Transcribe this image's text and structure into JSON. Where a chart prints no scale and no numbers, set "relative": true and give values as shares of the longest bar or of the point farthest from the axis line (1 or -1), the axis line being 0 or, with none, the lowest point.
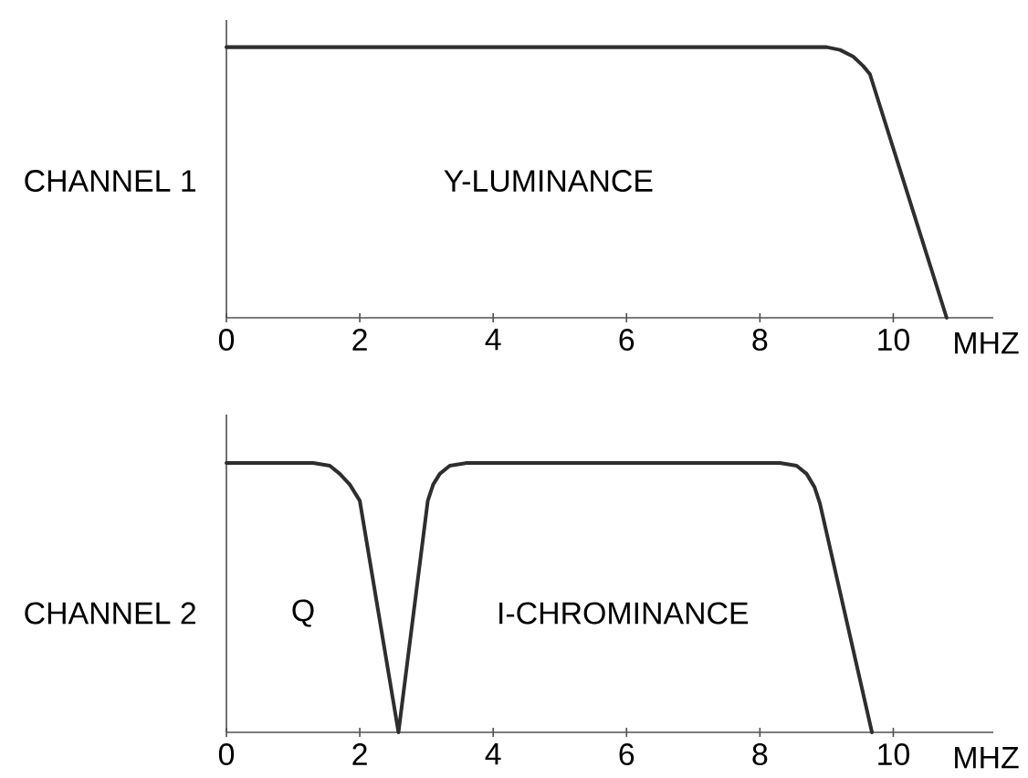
{
  "chart_data": [
    {
      "type": "line",
      "relative": true,
      "ylabel": "CHANNEL 1",
      "xlabel": "MHZ",
      "tick_labels": "x",
      "xlim": [
        0,
        11.5
      ],
      "xticks": [
        0,
        2,
        4,
        6,
        8,
        10
      ],
      "x": [
        0,
        9.0,
        9.2,
        9.4,
        9.55,
        9.65,
        10.8
      ],
      "series": [
        {
          "color": "#2e2e2e",
          "values": [
            1,
            1,
            0.99,
            0.965,
            0.93,
            0.9,
            0
          ]
        }
      ],
      "annotations": [
        "Y-LUMINANCE"
      ]
    },
    {
      "type": "line",
      "relative": true,
      "ylabel": "CHANNEL 2",
      "xlabel": "MHZ",
      "tick_labels": "x",
      "xlim": [
        0,
        11.5
      ],
      "xticks": [
        0,
        2,
        4,
        6,
        8,
        10
      ],
      "x": [
        0,
        1.3,
        1.55,
        1.7,
        1.85,
        2.0,
        2.58,
        3.02,
        3.1,
        3.2,
        3.35,
        3.6,
        8.3,
        8.55,
        8.7,
        8.82,
        8.9,
        9.68
      ],
      "series": [
        {
          "color": "#2e2e2e",
          "values": [
            1,
            1,
            0.99,
            0.96,
            0.92,
            0.86,
            0,
            0.86,
            0.92,
            0.96,
            0.99,
            1,
            1,
            0.99,
            0.96,
            0.91,
            0.85,
            0
          ]
        }
      ],
      "annotations": [
        "Q",
        "I-CHROMINANCE"
      ]
    }
  ]
}
